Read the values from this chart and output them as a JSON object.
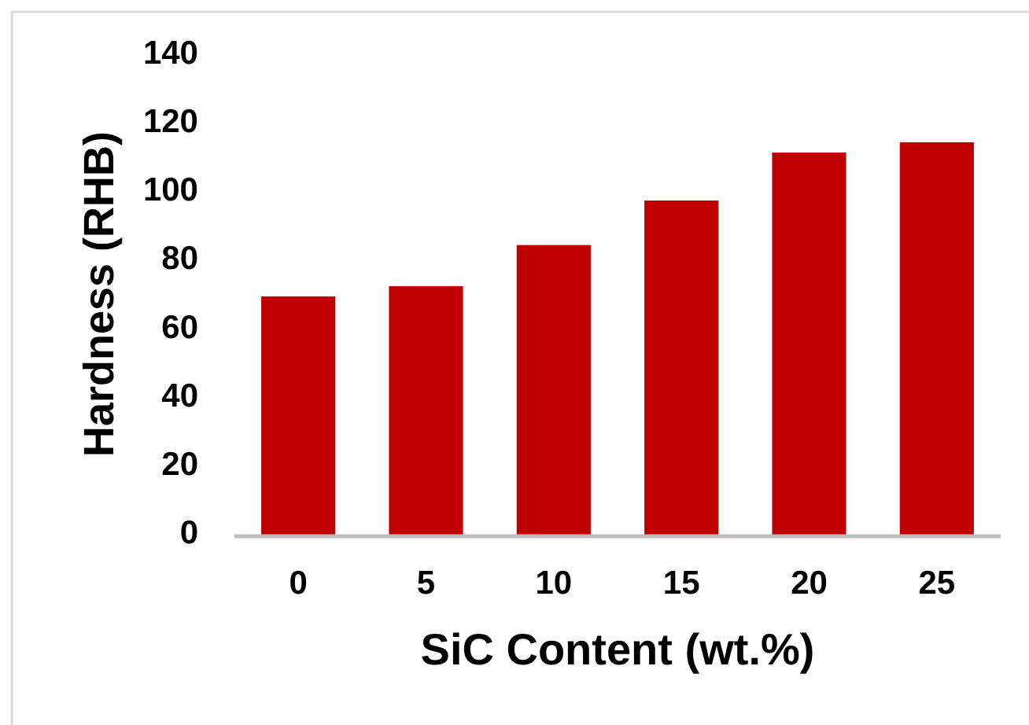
{
  "chart_data": {
    "type": "bar",
    "xlabel": "SiC Content (wt.%)",
    "ylabel": "Hardness (RHB)",
    "categories": [
      "0",
      "5",
      "10",
      "15",
      "20",
      "25"
    ],
    "values": [
      70,
      73,
      85,
      98,
      112,
      115
    ],
    "color": "#c00000",
    "ylim": [
      0,
      140
    ],
    "yticks": [
      0,
      20,
      40,
      60,
      80,
      100,
      120,
      140
    ]
  }
}
